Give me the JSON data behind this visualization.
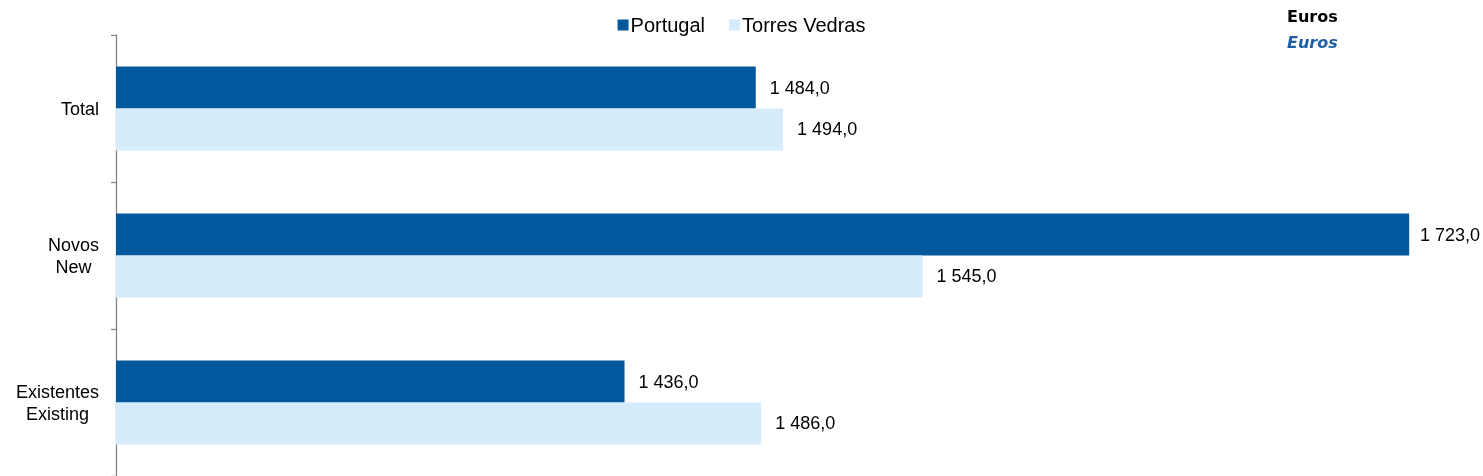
{
  "chart_data": {
    "type": "bar",
    "orientation": "horizontal",
    "categories": [
      "Total",
      "Novos\nNew",
      "Existentes\nExisting"
    ],
    "series": [
      {
        "name": "Portugal",
        "color": "#02589c",
        "values": [
          1484,
          1723,
          1436
        ],
        "value_labels": [
          "1 484,0",
          "1 723,0",
          "1 436,0"
        ]
      },
      {
        "name": "Torres Vedras",
        "color": "#d4ecfb",
        "values": [
          1494,
          1545,
          1486
        ],
        "value_labels": [
          "1 494,0",
          "1 545,0",
          "1 486,0"
        ]
      }
    ],
    "xlim": [
      1250,
      1750
    ],
    "tick_labels": "y",
    "legend": "top",
    "annotations": [
      "Euros",
      "Euros"
    ]
  }
}
